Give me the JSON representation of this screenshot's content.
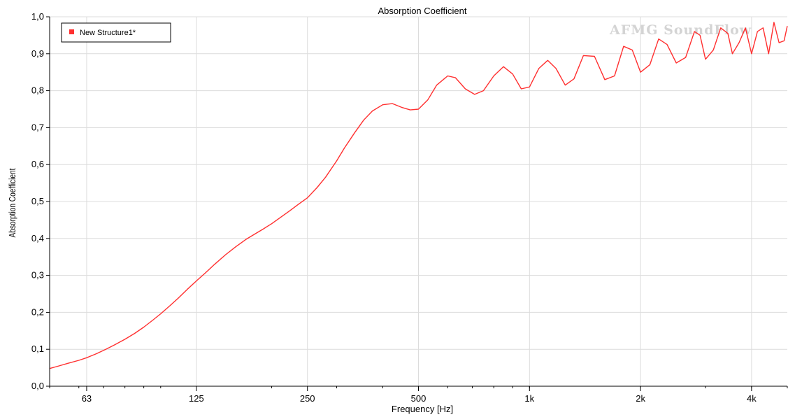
{
  "chart_data": {
    "type": "line",
    "title": "Absorption Coefficient",
    "xlabel": "Frequency [Hz]",
    "ylabel": "Absorption Coefficient",
    "x_scale": "log",
    "xlim": [
      50,
      5000
    ],
    "ylim": [
      0,
      1
    ],
    "x_ticks": [
      {
        "value": 63,
        "label": "63"
      },
      {
        "value": 125,
        "label": "125"
      },
      {
        "value": 250,
        "label": "250"
      },
      {
        "value": 500,
        "label": "500"
      },
      {
        "value": 1000,
        "label": "1k"
      },
      {
        "value": 2000,
        "label": "2k"
      },
      {
        "value": 4000,
        "label": "4k"
      }
    ],
    "y_ticks": [
      {
        "value": 0.0,
        "label": "0,0"
      },
      {
        "value": 0.1,
        "label": "0,1"
      },
      {
        "value": 0.2,
        "label": "0,2"
      },
      {
        "value": 0.3,
        "label": "0,3"
      },
      {
        "value": 0.4,
        "label": "0,4"
      },
      {
        "value": 0.5,
        "label": "0,5"
      },
      {
        "value": 0.6,
        "label": "0,6"
      },
      {
        "value": 0.7,
        "label": "0,7"
      },
      {
        "value": 0.8,
        "label": "0,8"
      },
      {
        "value": 0.9,
        "label": "0,9"
      },
      {
        "value": 1.0,
        "label": "1,0"
      }
    ],
    "grid": true,
    "legend_position": "top-left",
    "watermark": "AFMG SoundFlow",
    "series": [
      {
        "name": "New Structure1*",
        "color": "#ff3030",
        "x": [
          50,
          53,
          56,
          60,
          63,
          67,
          71,
          75,
          80,
          85,
          90,
          95,
          100,
          106,
          112,
          118,
          125,
          132,
          140,
          150,
          160,
          170,
          180,
          190,
          200,
          212,
          224,
          236,
          250,
          265,
          280,
          300,
          315,
          335,
          355,
          375,
          400,
          425,
          450,
          475,
          500,
          530,
          560,
          600,
          630,
          670,
          710,
          750,
          800,
          850,
          900,
          950,
          1000,
          1060,
          1120,
          1180,
          1250,
          1320,
          1400,
          1500,
          1600,
          1700,
          1800,
          1900,
          2000,
          2120,
          2240,
          2360,
          2500,
          2650,
          2800,
          2900,
          3000,
          3150,
          3300,
          3450,
          3550,
          3700,
          3850,
          4000,
          4150,
          4300,
          4450,
          4600,
          4750,
          4900,
          5000
        ],
        "y": [
          0.048,
          0.055,
          0.062,
          0.07,
          0.077,
          0.088,
          0.1,
          0.112,
          0.127,
          0.143,
          0.16,
          0.178,
          0.196,
          0.218,
          0.24,
          0.262,
          0.285,
          0.306,
          0.33,
          0.356,
          0.378,
          0.397,
          0.412,
          0.426,
          0.44,
          0.458,
          0.475,
          0.492,
          0.51,
          0.537,
          0.566,
          0.61,
          0.645,
          0.685,
          0.72,
          0.745,
          0.762,
          0.765,
          0.755,
          0.748,
          0.75,
          0.775,
          0.815,
          0.84,
          0.835,
          0.805,
          0.79,
          0.8,
          0.84,
          0.865,
          0.845,
          0.805,
          0.81,
          0.86,
          0.882,
          0.86,
          0.815,
          0.832,
          0.895,
          0.893,
          0.83,
          0.84,
          0.92,
          0.91,
          0.85,
          0.87,
          0.94,
          0.925,
          0.875,
          0.89,
          0.96,
          0.95,
          0.885,
          0.91,
          0.97,
          0.955,
          0.9,
          0.93,
          0.97,
          0.9,
          0.96,
          0.97,
          0.9,
          0.985,
          0.93,
          0.935,
          0.975
        ]
      }
    ]
  }
}
